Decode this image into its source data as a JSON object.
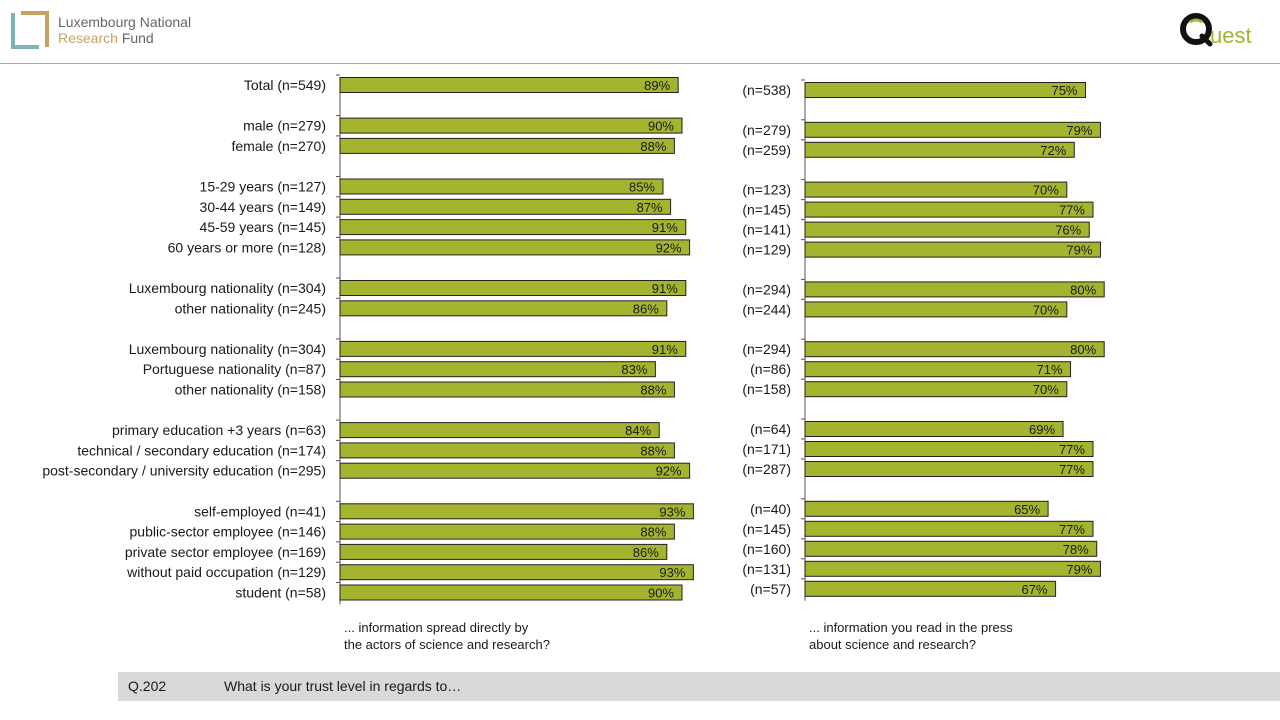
{
  "header": {
    "org_line1": "Luxembourg National",
    "org_line2_word1": "Research",
    "org_line2_word2": "Fund",
    "right_logo_text": "Quest",
    "colors": {
      "accent": "#c9a85a",
      "logo_teal": "#7fb3b8",
      "logo_gold": "#c9a063"
    }
  },
  "footer": {
    "question_code": "Q.202",
    "question_text": "What is your trust level in regards to…"
  },
  "chart_data": [
    {
      "type": "bar",
      "orientation": "horizontal",
      "xlabel_lines": [
        "... information spread directly by",
        "the actors of science and research?"
      ],
      "xlim": [
        0,
        100
      ],
      "bar_color": "#a5b42f",
      "categories": [
        "Total (n=549)",
        "male (n=279)",
        "female (n=270)",
        "15-29 years (n=127)",
        "30-44 years (n=149)",
        "45-59 years (n=145)",
        "60 years or more (n=128)",
        "Luxembourg nationality (n=304)",
        "other nationality (n=245)",
        "Luxembourg nationality (n=304)",
        "Portuguese nationality (n=87)",
        "other nationality (n=158)",
        "primary education +3 years (n=63)",
        "technical / secondary education  (n=174)",
        "post-secondary / university education (n=295)",
        "self-employed (n=41)",
        "public-sector employee (n=146)",
        "private sector employee (n=169)",
        "without paid occupation (n=129)",
        "student (n=58)"
      ],
      "groups": [
        1,
        2,
        4,
        2,
        3,
        3,
        5
      ],
      "values": [
        89,
        90,
        88,
        85,
        87,
        91,
        92,
        91,
        86,
        91,
        83,
        88,
        84,
        88,
        92,
        93,
        88,
        86,
        93,
        90
      ],
      "value_labels": [
        "89%",
        "90%",
        "88%",
        "85%",
        "87%",
        "91%",
        "92%",
        "91%",
        "86%",
        "91%",
        "83%",
        "88%",
        "84%",
        "88%",
        "92%",
        "93%",
        "88%",
        "86%",
        "93%",
        "90%"
      ]
    },
    {
      "type": "bar",
      "orientation": "horizontal",
      "xlabel_lines": [
        "... information you read in the press",
        "about science and research?"
      ],
      "xlim": [
        0,
        100
      ],
      "bar_color": "#a5b42f",
      "categories": [
        "(n=538)",
        "(n=279)",
        "(n=259)",
        "(n=123)",
        "(n=145)",
        "(n=141)",
        "(n=129)",
        "(n=294)",
        "(n=244)",
        "(n=294)",
        "(n=86)",
        "(n=158)",
        "(n=64)",
        "(n=171)",
        "(n=287)",
        "(n=40)",
        "(n=145)",
        "(n=160)",
        "(n=131)",
        "(n=57)"
      ],
      "groups": [
        1,
        2,
        4,
        2,
        3,
        3,
        5
      ],
      "values": [
        75,
        79,
        72,
        70,
        77,
        76,
        79,
        80,
        70,
        80,
        71,
        70,
        69,
        77,
        77,
        65,
        77,
        78,
        79,
        67
      ],
      "value_labels": [
        "75%",
        "79%",
        "72%",
        "70%",
        "77%",
        "76%",
        "79%",
        "80%",
        "70%",
        "80%",
        "71%",
        "70%",
        "69%",
        "77%",
        "77%",
        "65%",
        "77%",
        "78%",
        "79%",
        "67%"
      ]
    }
  ]
}
